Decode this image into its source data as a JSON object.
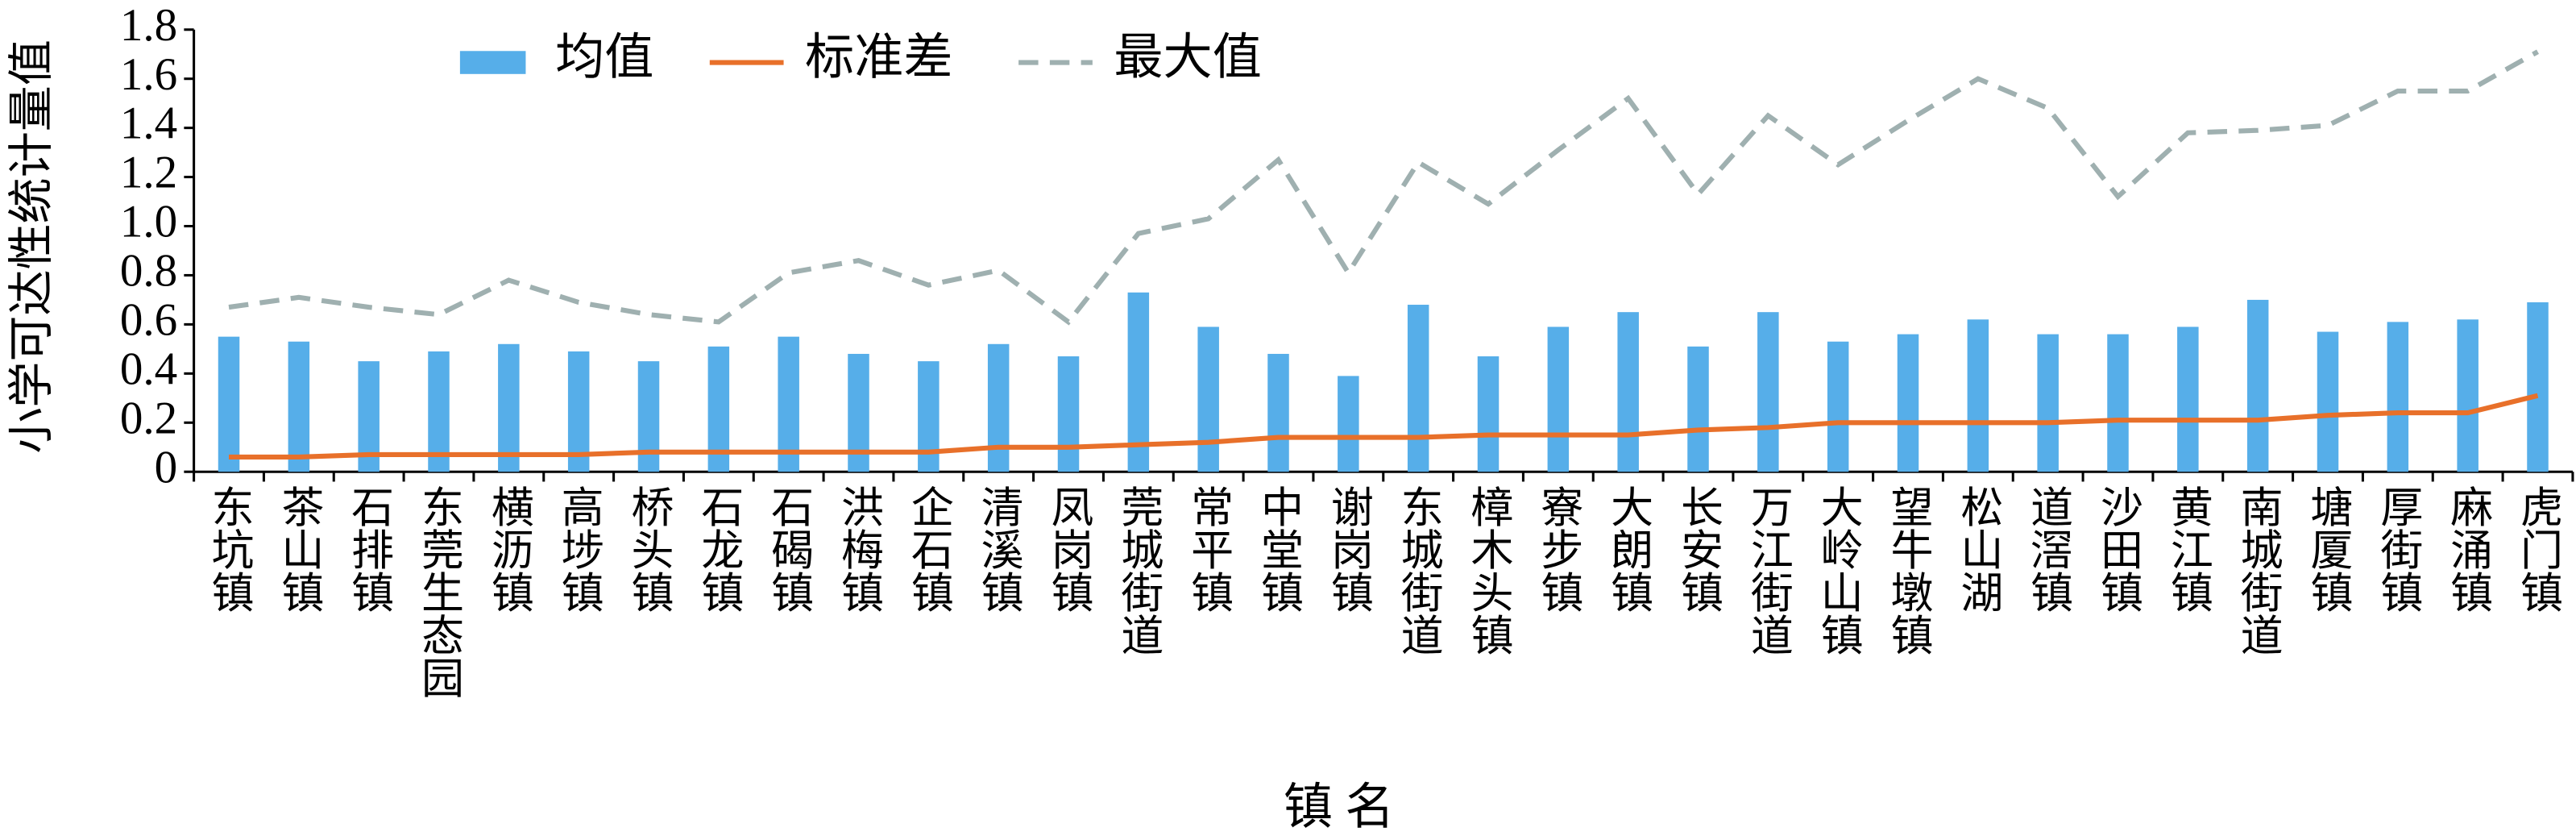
{
  "chart_data": {
    "type": "bar",
    "y_label": "小学可达性统计量值",
    "x_label": "镇 名",
    "categories": [
      "东坑镇",
      "茶山镇",
      "石排镇",
      "东莞生态园",
      "横沥镇",
      "高埗镇",
      "桥头镇",
      "石龙镇",
      "石碣镇",
      "洪梅镇",
      "企石镇",
      "清溪镇",
      "凤岗镇",
      "莞城街道",
      "常平镇",
      "中堂镇",
      "谢岗镇",
      "东城街道",
      "樟木头镇",
      "寮步镇",
      "大朗镇",
      "长安镇",
      "万江街道",
      "大岭山镇",
      "望牛墩镇",
      "松山湖",
      "道滘镇",
      "沙田镇",
      "黄江镇",
      "南城街道",
      "塘厦镇",
      "厚街镇",
      "麻涌镇",
      "虎门镇"
    ],
    "series": [
      {
        "name": "均值",
        "type": "bar",
        "color": "#56aee9",
        "values": [
          0.55,
          0.53,
          0.45,
          0.49,
          0.52,
          0.49,
          0.45,
          0.51,
          0.55,
          0.48,
          0.45,
          0.52,
          0.47,
          0.73,
          0.59,
          0.48,
          0.39,
          0.68,
          0.47,
          0.59,
          0.65,
          0.51,
          0.65,
          0.53,
          0.56,
          0.62,
          0.56,
          0.56,
          0.59,
          0.7,
          0.57,
          0.61,
          0.62,
          0.69
        ]
      },
      {
        "name": "标准差",
        "type": "line",
        "color": "#e8702a",
        "values": [
          0.06,
          0.06,
          0.07,
          0.07,
          0.07,
          0.07,
          0.08,
          0.08,
          0.08,
          0.08,
          0.08,
          0.1,
          0.1,
          0.11,
          0.12,
          0.14,
          0.14,
          0.14,
          0.15,
          0.15,
          0.15,
          0.17,
          0.18,
          0.2,
          0.2,
          0.2,
          0.2,
          0.21,
          0.21,
          0.21,
          0.23,
          0.24,
          0.24,
          0.31
        ]
      },
      {
        "name": "最大值",
        "type": "line",
        "dashed": true,
        "color": "#9fb0b0",
        "values": [
          0.67,
          0.71,
          0.67,
          0.64,
          0.78,
          0.69,
          0.64,
          0.61,
          0.81,
          0.86,
          0.76,
          0.82,
          0.61,
          0.97,
          1.03,
          1.27,
          0.81,
          1.26,
          1.09,
          1.31,
          1.52,
          1.13,
          1.45,
          1.25,
          1.43,
          1.6,
          1.48,
          1.12,
          1.38,
          1.39,
          1.41,
          1.55,
          1.55,
          1.71
        ]
      }
    ],
    "ylim": [
      0,
      1.8
    ],
    "yticks": [
      0,
      0.2,
      0.4,
      0.6,
      0.8,
      {
        "value": 1,
        "label": "1.0"
      },
      1.2,
      1.4,
      1.6,
      1.8
    ],
    "grid": false
  }
}
